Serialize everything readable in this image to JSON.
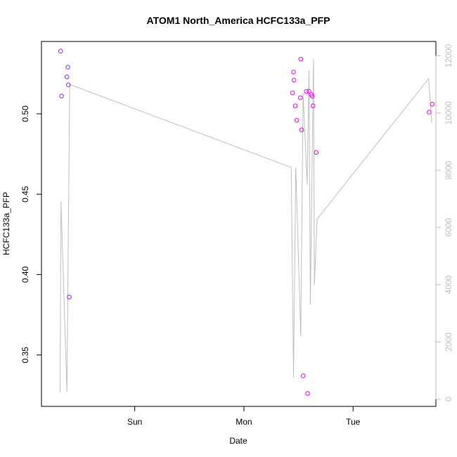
{
  "chart_data": {
    "type": "scatter",
    "title": "ATOM1 North_America HCFC133a_PFP",
    "xlabel": "Date",
    "ylabel": "HCFC133a_PFP",
    "x_ticks": [
      {
        "label": "Sun",
        "value": 24
      },
      {
        "label": "Mon",
        "value": 48
      },
      {
        "label": "Tue",
        "value": 72
      }
    ],
    "xlim": [
      3.5,
      90.2
    ],
    "ylim": [
      0.318,
      0.545
    ],
    "y_ticks": [
      0.35,
      0.4,
      0.45,
      0.5
    ],
    "y_tick_labels": [
      "0.35",
      "0.40",
      "0.45",
      "0.50"
    ],
    "y2lim": [
      -250,
      12500
    ],
    "y2_ticks": [
      0,
      2000,
      4000,
      6000,
      8000,
      10000,
      12000
    ],
    "y2_tick_labels": [
      "0",
      "2000",
      "4000",
      "6000",
      "8000",
      "10000",
      "12000"
    ],
    "points": [
      {
        "x": 7.7,
        "y": 0.539,
        "c": "#8a2be2"
      },
      {
        "x": 7.9,
        "y": 0.511,
        "c": "#8a2be2"
      },
      {
        "x": 9.1,
        "y": 0.523,
        "c": "#8a2be2"
      },
      {
        "x": 9.3,
        "y": 0.529,
        "c": "#8a2be2"
      },
      {
        "x": 9.4,
        "y": 0.518,
        "c": "#8a2be2"
      },
      {
        "x": 9.6,
        "y": 0.386,
        "c": "#8a2be2"
      },
      {
        "x": 58.7,
        "y": 0.513,
        "c": "#ee00ee"
      },
      {
        "x": 58.9,
        "y": 0.526,
        "c": "#ee00ee"
      },
      {
        "x": 59.0,
        "y": 0.521,
        "c": "#ee00ee"
      },
      {
        "x": 59.3,
        "y": 0.505,
        "c": "#ee00ee"
      },
      {
        "x": 59.6,
        "y": 0.496,
        "c": "#ee00ee"
      },
      {
        "x": 60.4,
        "y": 0.51,
        "c": "#ee00ee"
      },
      {
        "x": 60.5,
        "y": 0.534,
        "c": "#ee00ee"
      },
      {
        "x": 60.7,
        "y": 0.49,
        "c": "#ee00ee"
      },
      {
        "x": 61.0,
        "y": 0.337,
        "c": "#ee00ee"
      },
      {
        "x": 61.7,
        "y": 0.514,
        "c": "#ee00ee"
      },
      {
        "x": 62.0,
        "y": 0.326,
        "c": "#ee00ee"
      },
      {
        "x": 62.3,
        "y": 0.514,
        "c": "#ee00ee"
      },
      {
        "x": 62.8,
        "y": 0.512,
        "c": "#ee00ee"
      },
      {
        "x": 63.0,
        "y": 0.511,
        "c": "#ee00ee"
      },
      {
        "x": 63.2,
        "y": 0.505,
        "c": "#ee00ee"
      },
      {
        "x": 63.9,
        "y": 0.476,
        "c": "#ee00ee"
      },
      {
        "x": 88.7,
        "y": 0.501,
        "c": "#ee00ee"
      },
      {
        "x": 89.4,
        "y": 0.506,
        "c": "#ee00ee"
      }
    ],
    "line": {
      "color": "#bebebe",
      "axis": "right",
      "points": [
        [
          7.6,
          250
        ],
        [
          7.8,
          6900
        ],
        [
          9.1,
          250
        ],
        [
          9.7,
          11000
        ],
        [
          58.4,
          8100
        ],
        [
          58.9,
          750
        ],
        [
          59.4,
          8100
        ],
        [
          60.5,
          2200
        ],
        [
          61.0,
          10700
        ],
        [
          61.9,
          7500
        ],
        [
          62.3,
          11500
        ],
        [
          62.6,
          3300
        ],
        [
          63.3,
          11900
        ],
        [
          63.5,
          4000
        ],
        [
          64.1,
          6300
        ],
        [
          88.6,
          11200
        ],
        [
          89.3,
          9650
        ]
      ]
    }
  }
}
